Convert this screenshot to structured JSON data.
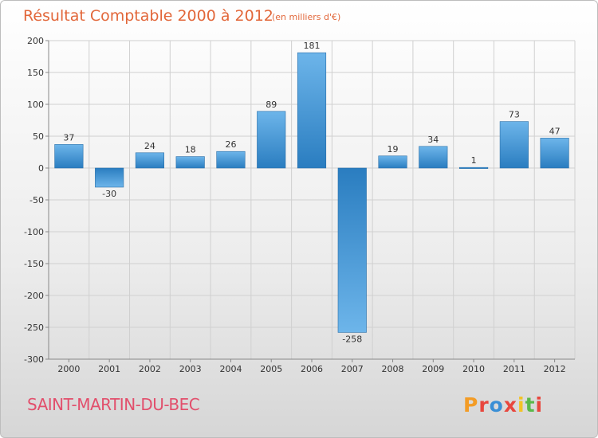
{
  "chart_data": {
    "type": "bar",
    "title": "Résultat Comptable 2000 à 2012",
    "unit_note": "(en milliers d'€)",
    "categories": [
      "2000",
      "2001",
      "2002",
      "2003",
      "2004",
      "2005",
      "2006",
      "2007",
      "2008",
      "2009",
      "2010",
      "2011",
      "2012"
    ],
    "values": [
      37,
      -30,
      24,
      18,
      26,
      89,
      181,
      -258,
      19,
      34,
      1,
      73,
      47
    ],
    "value_labels": [
      "37",
      "-30",
      "24",
      "18",
      "26",
      "89",
      "181",
      "-258",
      "19",
      "34",
      "1",
      "73",
      "47"
    ],
    "yticks": [
      200,
      150,
      100,
      50,
      0,
      -50,
      -100,
      -150,
      -200,
      -250,
      -300
    ],
    "ytick_labels": [
      "200",
      "150",
      "100",
      "50",
      "0",
      "-50",
      "-100",
      "-150",
      "-200",
      "-250",
      "-300"
    ],
    "ylim": [
      -300,
      200
    ],
    "grid": true,
    "colors": {
      "bar_light": "#6db5ea",
      "bar_dark": "#2a7dc0",
      "grid": "#d0d0d0"
    }
  },
  "footer": {
    "commune": "SAINT-MARTIN-DU-BEC",
    "brand_letters": [
      "P",
      "r",
      "o",
      "x",
      "i",
      "t",
      "i"
    ],
    "brand_colors": [
      "#f39c26",
      "#e8463d",
      "#3a8fd6",
      "#e8463d",
      "#f3c326",
      "#5bb84a",
      "#e8463d"
    ]
  }
}
